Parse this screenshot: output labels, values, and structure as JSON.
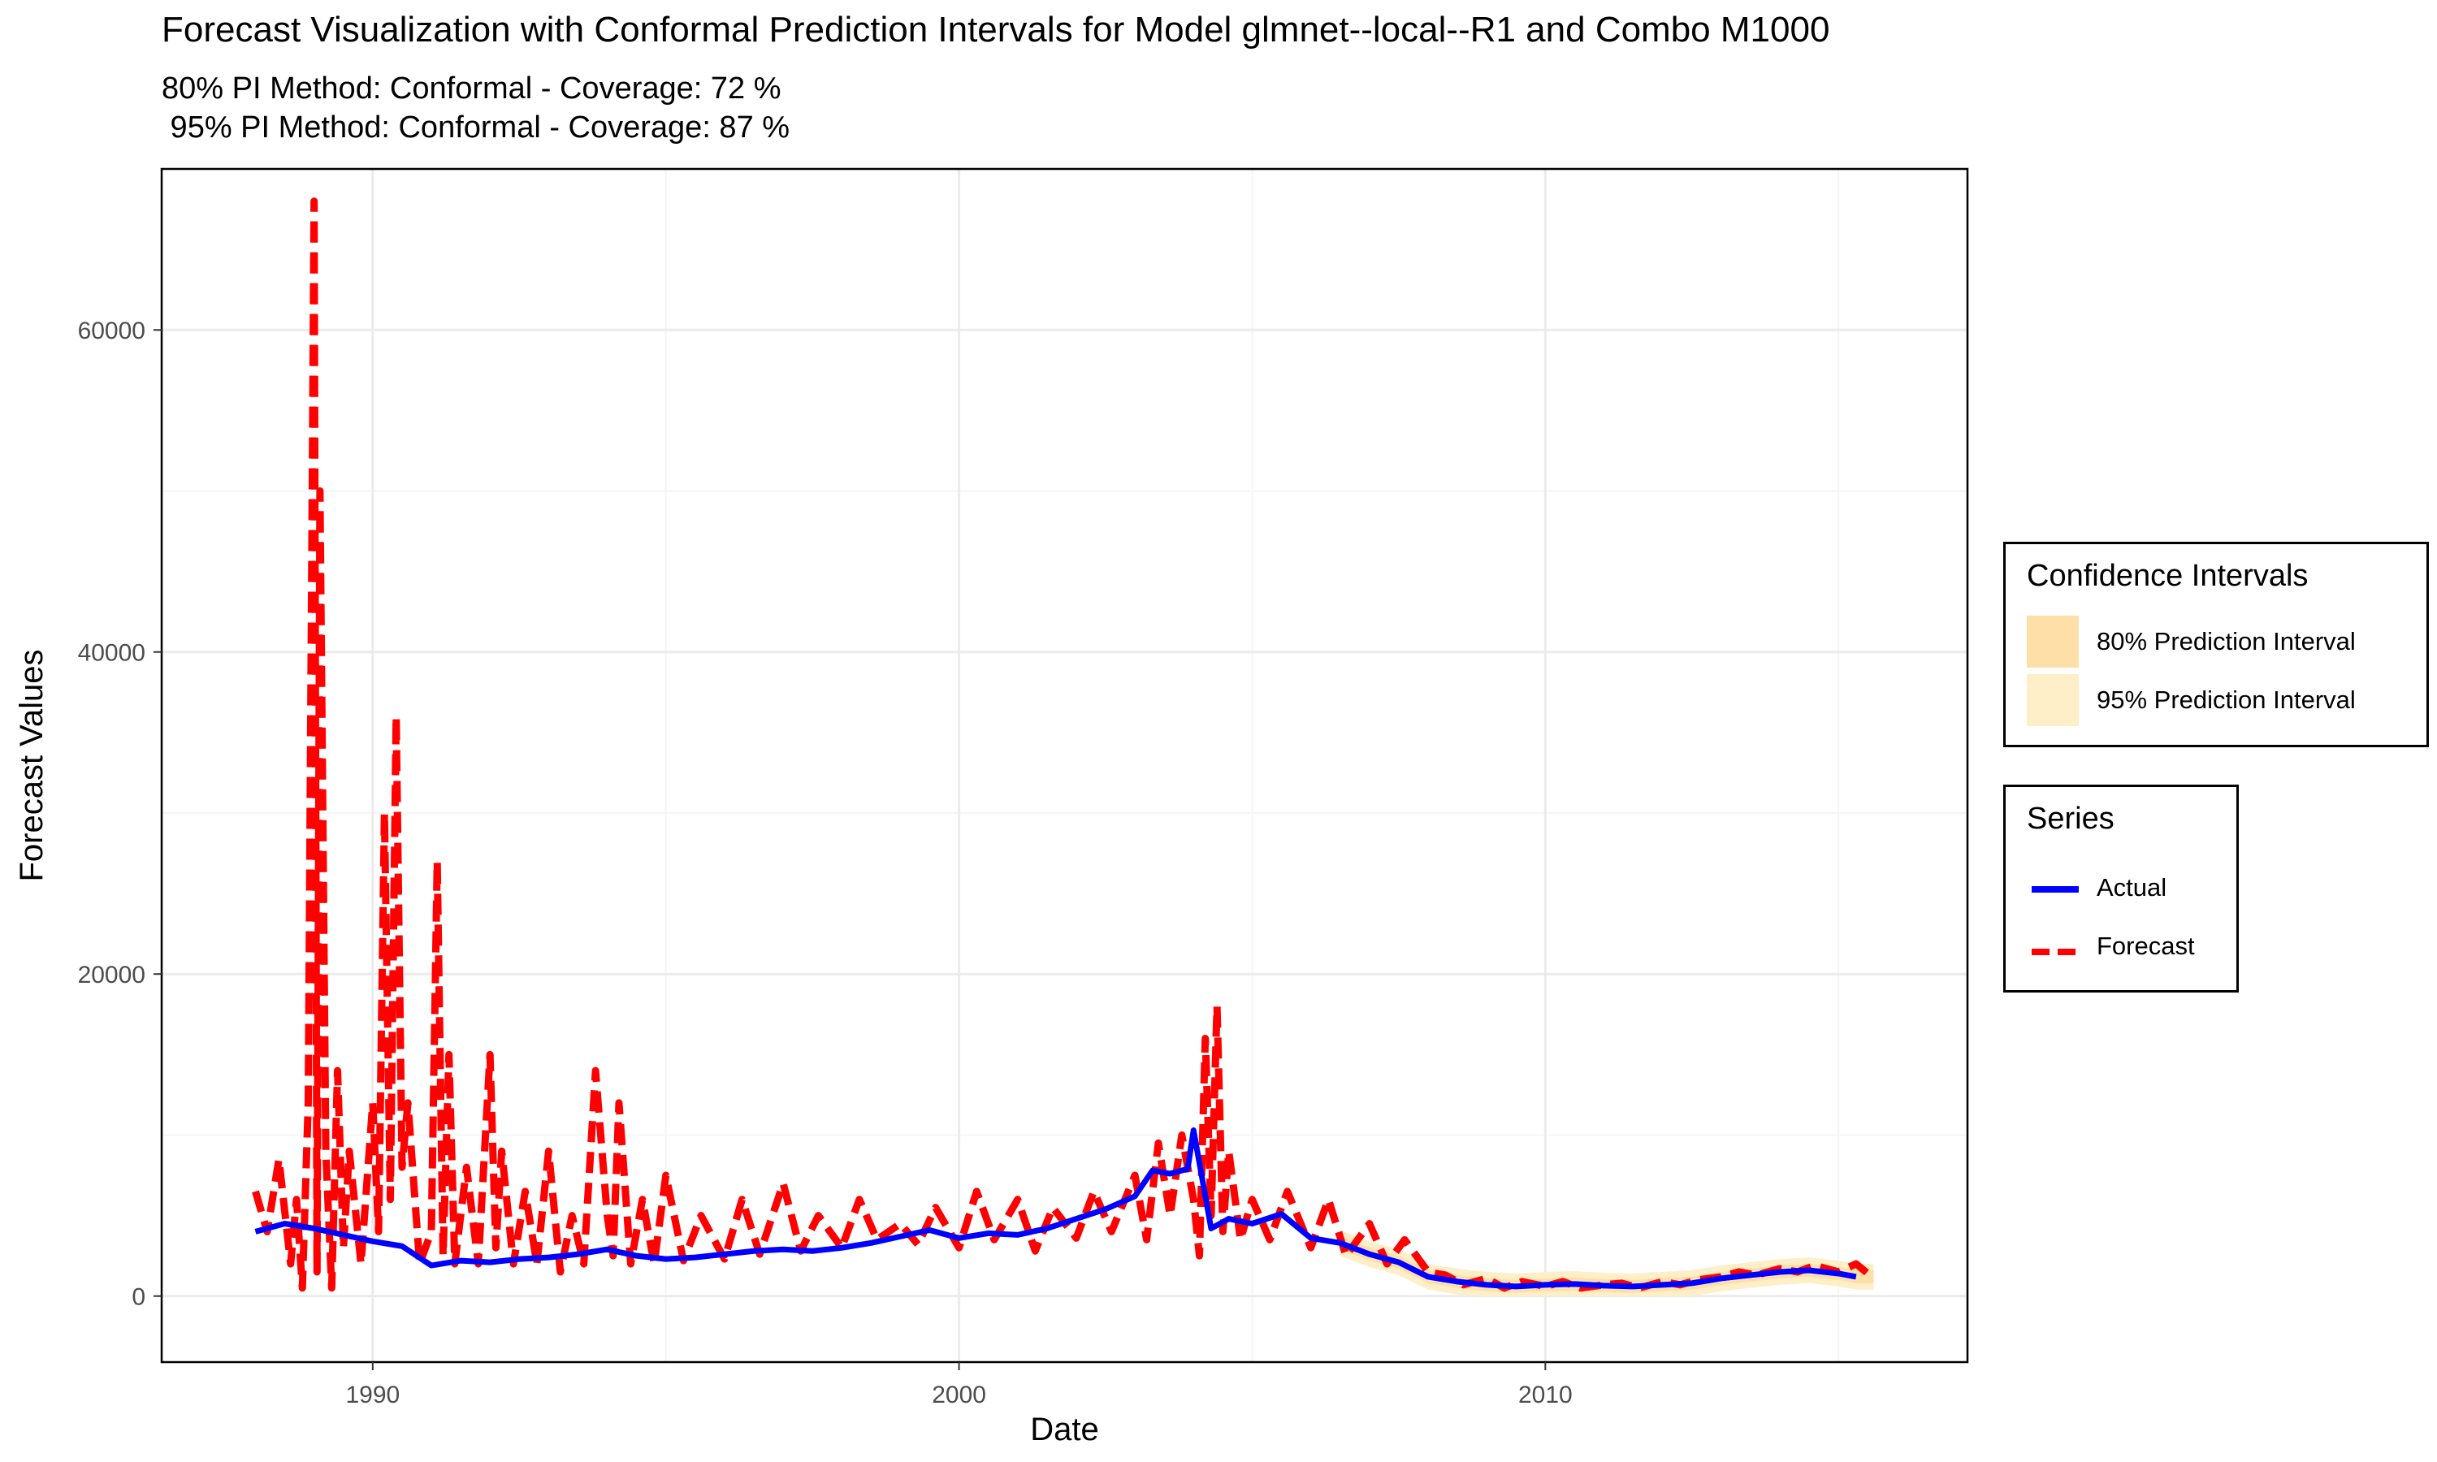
{
  "title": "Forecast Visualization with Conformal Prediction Intervals for Model glmnet--local--R1 and Combo M1000",
  "subtitle_lines": [
    "80% PI Method: Conformal - Coverage: 72 %",
    " 95% PI Method: Conformal - Coverage: 87 %"
  ],
  "colors": {
    "actual": "#0000FF",
    "forecast": "#FF0000",
    "pi80": "#FFDFA8",
    "pi95": "#FFEFC8",
    "grid_major": "#EBEBEB",
    "grid_minor": "#F5F5F5"
  },
  "legends": {
    "intervals": {
      "title": "Confidence Intervals",
      "items": [
        {
          "label": "80% Prediction Interval",
          "color": "#FFDFA8"
        },
        {
          "label": "95% Prediction Interval",
          "color": "#FFEFC8"
        }
      ]
    },
    "series": {
      "title": "Series",
      "items": [
        {
          "label": "Actual",
          "color": "#0000FF",
          "style": "solid"
        },
        {
          "label": "Forecast",
          "color": "#FF0000",
          "style": "dashed"
        }
      ]
    }
  },
  "chart_data": {
    "type": "line",
    "title": "Forecast Visualization with Conformal Prediction Intervals for Model glmnet--local--R1 and Combo M1000",
    "xlabel": "Date",
    "ylabel": "Forecast Values",
    "xlim": [
      1986.4,
      2017.2
    ],
    "ylim": [
      -4100,
      70000
    ],
    "x_ticks": [
      1990,
      2000,
      2010
    ],
    "x_tick_labels": [
      "1990",
      "2000",
      "2010"
    ],
    "y_ticks": [
      0,
      20000,
      40000,
      60000
    ],
    "y_tick_labels": [
      "0",
      "20000",
      "40000",
      "60000"
    ],
    "grid": true,
    "legend_position": "right",
    "series": [
      {
        "name": "Actual",
        "style": "solid",
        "x": [
          1988.0,
          1988.5,
          1989.0,
          1989.5,
          1990.0,
          1990.5,
          1991.0,
          1991.5,
          1992.0,
          1992.5,
          1993.0,
          1993.5,
          1994.0,
          1994.5,
          1995.0,
          1995.5,
          1996.0,
          1996.5,
          1997.0,
          1997.5,
          1998.0,
          1998.5,
          1999.0,
          1999.5,
          2000.0,
          2000.5,
          2001.0,
          2001.5,
          2002.0,
          2002.5,
          2003.0,
          2003.3,
          2003.6,
          2003.9,
          2004.0,
          2004.3,
          2004.6,
          2005.0,
          2005.5,
          2006.0,
          2006.5,
          2007.0,
          2007.5,
          2008.0,
          2008.5,
          2009.0,
          2009.5,
          2010.0,
          2010.5,
          2011.0,
          2011.5,
          2012.0,
          2012.5,
          2013.0,
          2013.5,
          2014.0,
          2014.5,
          2015.0,
          2015.3
        ],
        "values": [
          4000,
          4500,
          4200,
          3800,
          3400,
          3100,
          1900,
          2200,
          2100,
          2300,
          2400,
          2600,
          2900,
          2500,
          2300,
          2400,
          2600,
          2800,
          2900,
          2800,
          3000,
          3300,
          3700,
          4100,
          3600,
          3900,
          3800,
          4200,
          4800,
          5400,
          6200,
          7800,
          7600,
          7900,
          10300,
          4200,
          4800,
          4500,
          5100,
          3600,
          3300,
          2600,
          2100,
          1200,
          900,
          700,
          600,
          700,
          750,
          650,
          600,
          700,
          800,
          1100,
          1300,
          1500,
          1600,
          1400,
          1200
        ]
      },
      {
        "name": "Forecast",
        "style": "dashed",
        "x": [
          1988.0,
          1988.2,
          1988.4,
          1988.6,
          1988.7,
          1988.8,
          1988.9,
          1989.0,
          1989.05,
          1989.1,
          1989.2,
          1989.3,
          1989.4,
          1989.5,
          1989.6,
          1989.8,
          1990.0,
          1990.1,
          1990.2,
          1990.3,
          1990.4,
          1990.5,
          1990.6,
          1990.8,
          1991.0,
          1991.1,
          1991.2,
          1991.3,
          1991.4,
          1991.6,
          1991.8,
          1992.0,
          1992.1,
          1992.2,
          1992.4,
          1992.6,
          1992.8,
          1993.0,
          1993.2,
          1993.4,
          1993.6,
          1993.8,
          1994.0,
          1994.1,
          1994.2,
          1994.4,
          1994.6,
          1994.8,
          1995.0,
          1995.3,
          1995.6,
          1996.0,
          1996.3,
          1996.6,
          1997.0,
          1997.3,
          1997.6,
          1998.0,
          1998.3,
          1998.6,
          1999.0,
          1999.3,
          1999.6,
          2000.0,
          2000.3,
          2000.6,
          2001.0,
          2001.3,
          2001.6,
          2002.0,
          2002.3,
          2002.6,
          2003.0,
          2003.2,
          2003.4,
          2003.6,
          2003.8,
          2004.0,
          2004.1,
          2004.2,
          2004.3,
          2004.4,
          2004.5,
          2004.6,
          2004.8,
          2005.0,
          2005.3,
          2005.6,
          2006.0,
          2006.3,
          2006.6,
          2007.0,
          2007.3,
          2007.6,
          2008.0,
          2008.3,
          2008.6,
          2009.0,
          2009.3,
          2009.6,
          2010.0,
          2010.3,
          2010.6,
          2011.0,
          2011.3,
          2011.6,
          2012.0,
          2012.3,
          2012.6,
          2013.0,
          2013.3,
          2013.6,
          2014.0,
          2014.3,
          2014.6,
          2015.0,
          2015.3,
          2015.6
        ],
        "values": [
          6500,
          4000,
          8500,
          2000,
          6000,
          500,
          12000,
          68000,
          1500,
          50000,
          9000,
          500,
          14000,
          3000,
          9000,
          2000,
          12000,
          4000,
          30000,
          6000,
          36000,
          8000,
          12000,
          2000,
          4000,
          27000,
          2500,
          15000,
          2000,
          8000,
          2000,
          15000,
          3000,
          9000,
          2000,
          6500,
          2000,
          9000,
          1500,
          5000,
          2000,
          14000,
          5000,
          2500,
          12000,
          2000,
          6000,
          2000,
          7500,
          2200,
          5000,
          2300,
          6000,
          2600,
          7000,
          2800,
          5000,
          3000,
          6000,
          3500,
          4500,
          3200,
          5500,
          3000,
          6500,
          3500,
          6000,
          2800,
          5500,
          3600,
          6500,
          4000,
          7500,
          3500,
          9500,
          5000,
          10000,
          6000,
          2500,
          16000,
          5000,
          18000,
          4000,
          9000,
          3500,
          6000,
          3500,
          6500,
          3000,
          6000,
          2500,
          4500,
          2000,
          3500,
          1500,
          1300,
          700,
          1100,
          500,
          900,
          600,
          900,
          500,
          700,
          800,
          500,
          900,
          700,
          1000,
          1200,
          1500,
          1300,
          1700,
          1500,
          1900,
          1500,
          2000,
          1100
        ]
      }
    ],
    "bands": [
      {
        "name": "80% Prediction Interval",
        "color": "#FFDFA8",
        "x_start": 2006.5,
        "x_end": 2015.6,
        "half_width": 400
      },
      {
        "name": "95% Prediction Interval",
        "color": "#FFEFC8",
        "x_start": 2006.5,
        "x_end": 2015.6,
        "half_width": 800
      }
    ]
  }
}
